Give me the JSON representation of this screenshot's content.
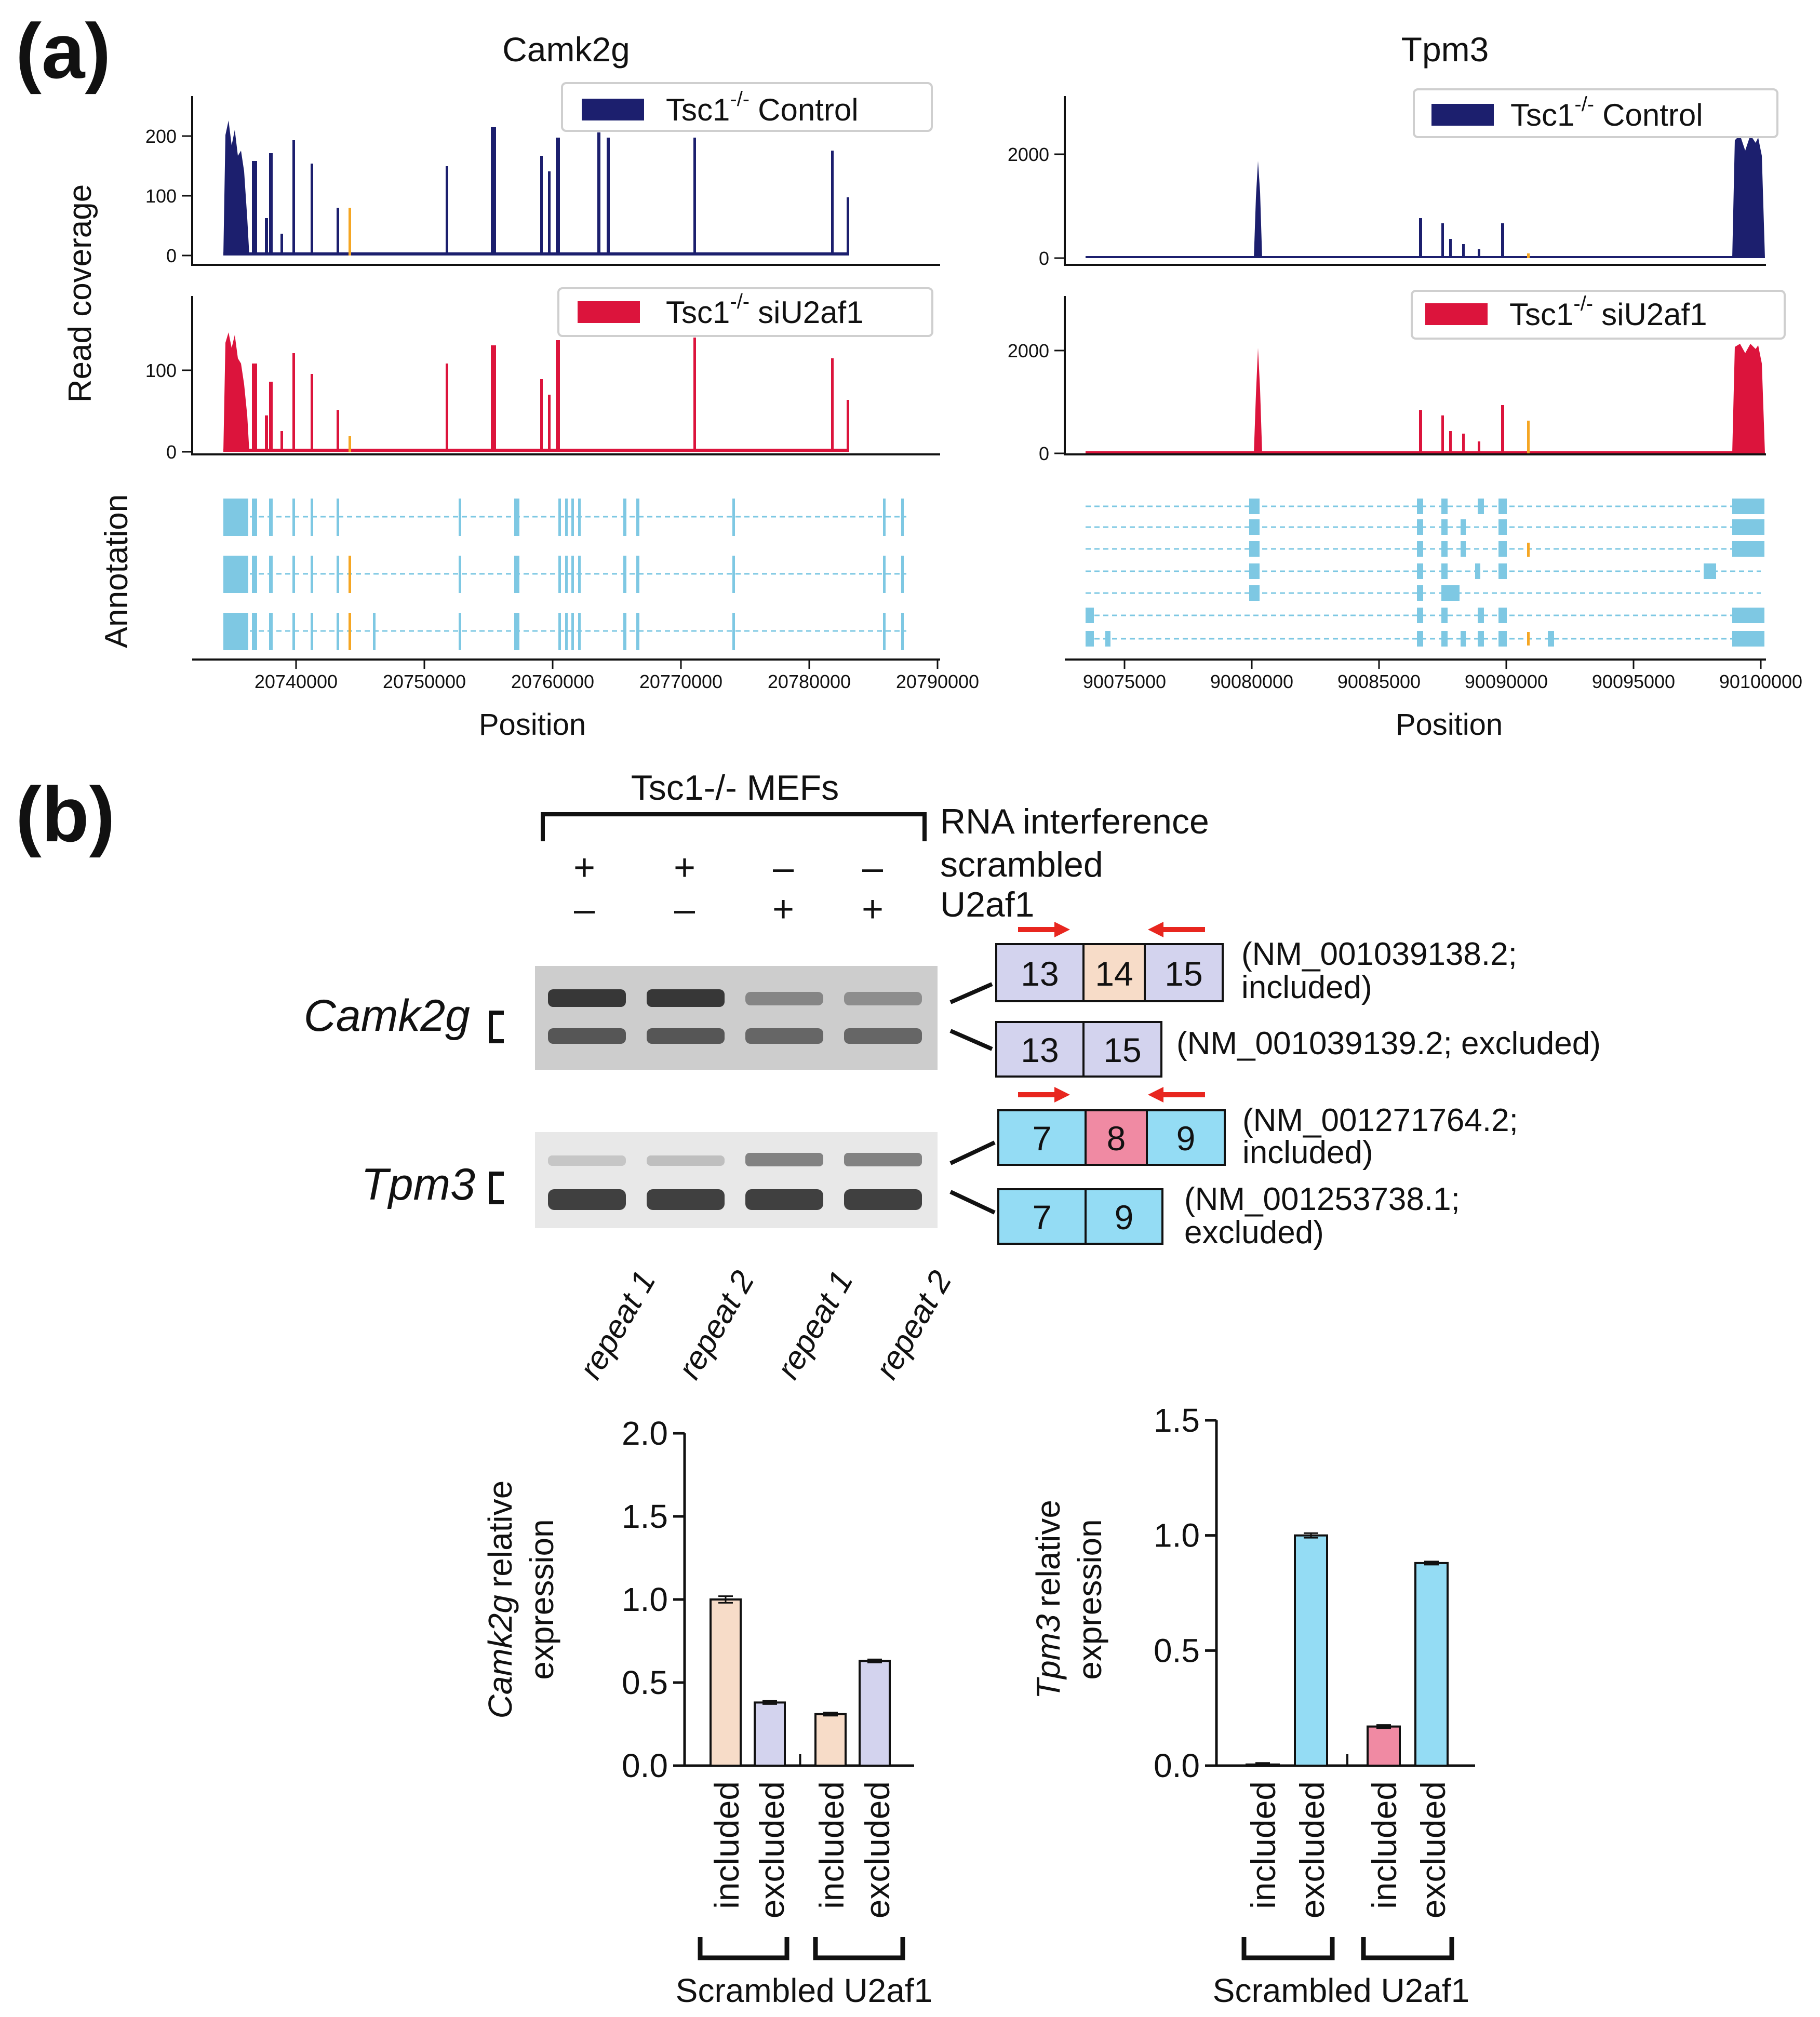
{
  "panel_a": {
    "label": "(a)",
    "ylabel_top": "Read coverage",
    "ylabel_bottom": "Annotation",
    "xlabel": "Position",
    "camk2g": {
      "title": "Camk2g",
      "legend_ctrl_base": "Tsc1",
      "legend_ctrl_sup": "-/-",
      "legend_ctrl_rest": "Control",
      "legend_si_base": "Tsc1",
      "legend_si_sup": "-/-",
      "legend_si_rest": "siU2af1",
      "ctrl_ticks": [
        "0",
        "100",
        "200"
      ],
      "si_ticks": [
        "0",
        "100"
      ],
      "x_ticks": [
        "20740000",
        "20750000",
        "20760000",
        "20770000",
        "20780000",
        "20790000"
      ]
    },
    "tpm3": {
      "title": "Tpm3",
      "legend_ctrl_base": "Tsc1",
      "legend_ctrl_sup": "-/-",
      "legend_ctrl_rest": "Control",
      "legend_si_base": "Tsc1",
      "legend_si_sup": "-/-",
      "legend_si_rest": "siU2af1",
      "ctrl_ticks": [
        "0",
        "2000"
      ],
      "si_ticks": [
        "0",
        "2000"
      ],
      "x_ticks": [
        "90075000",
        "90080000",
        "90085000",
        "90090000",
        "90095000",
        "90100000"
      ]
    },
    "colors": {
      "control": "#1c1f6e",
      "siU2af1": "#dc143c",
      "exon": "#7ec8e3",
      "highlight": "#f5a623"
    }
  },
  "panel_b": {
    "label": "(b)",
    "mef_title": "Tsc1-/- MEFs",
    "rna_label": "RNA interference",
    "scrambled_label": "scrambled",
    "u2af1_label": "U2af1",
    "scr_signs": [
      "+",
      "+",
      "–",
      "–"
    ],
    "u2_signs": [
      "–",
      "–",
      "+",
      "+"
    ],
    "gene1": "Camk2g",
    "gene2": "Tpm3",
    "lanes": [
      "repeat 1",
      "repeat 2",
      "repeat 1",
      "repeat 2"
    ],
    "camk2g_incl": {
      "exons": [
        "13",
        "14",
        "15"
      ],
      "note1": "(NM_001039138.2;",
      "note2": "included)"
    },
    "camk2g_excl": {
      "exons": [
        "13",
        "15"
      ],
      "note1": "(NM_001039139.2; excluded)"
    },
    "tpm3_incl": {
      "exons": [
        "7",
        "8",
        "9"
      ],
      "note1": "(NM_001271764.2;",
      "note2": "included)"
    },
    "tpm3_excl": {
      "exons": [
        "7",
        "9"
      ],
      "note1": "(NM_001253738.1;",
      "note2": "excluded)"
    },
    "colors": {
      "camk_incl": "#f7dcc8",
      "camk_excl": "#d3d3ee",
      "tpm_excl": "#94dcf4",
      "tpm_incl": "#f08aa3",
      "arrow": "#e8261f"
    }
  },
  "chart_data": [
    {
      "type": "bar",
      "title": "",
      "ylabel_italic": "Camk2g",
      "ylabel_rest": "relative",
      "ylabel2": "expression",
      "categories": [
        "included",
        "excluded",
        "included",
        "excluded"
      ],
      "groups": [
        "Scrambled",
        "U2af1"
      ],
      "values": [
        1.0,
        0.38,
        0.31,
        0.63
      ],
      "errors": [
        0.02,
        0.005,
        0.008,
        0.004
      ],
      "colors": [
        "#f7dcc8",
        "#d3d3ee",
        "#f7dcc8",
        "#d3d3ee"
      ],
      "ylim": [
        0,
        2.0
      ],
      "yticks": [
        "0.0",
        "0.5",
        "1.0",
        "1.5",
        "2.0"
      ],
      "group_label": "Scrambled U2af1"
    },
    {
      "type": "bar",
      "title": "",
      "ylabel_italic": "Tpm3",
      "ylabel_rest": "relative",
      "ylabel2": "expression",
      "categories": [
        "included",
        "excluded",
        "included",
        "excluded"
      ],
      "groups": [
        "Scrambled",
        "U2af1"
      ],
      "values": [
        0.005,
        1.0,
        0.17,
        0.88
      ],
      "errors": [
        0.002,
        0.01,
        0.003,
        0.004
      ],
      "colors": [
        "#f08aa3",
        "#94dcf4",
        "#f08aa3",
        "#94dcf4"
      ],
      "ylim": [
        0,
        1.5
      ],
      "yticks": [
        "0.0",
        "0.5",
        "1.0",
        "1.5"
      ],
      "group_label": "Scrambled U2af1"
    }
  ]
}
